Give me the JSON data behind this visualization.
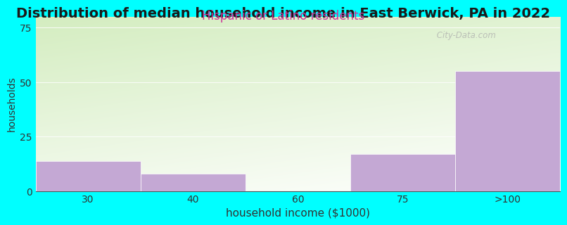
{
  "title": "Distribution of median household income in East Berwick, PA in 2022",
  "subtitle": "Hispanic or Latino residents",
  "xlabel": "household income ($1000)",
  "ylabel": "households",
  "categories": [
    "30",
    "40",
    "60",
    "75",
    ">100"
  ],
  "values": [
    14,
    8,
    0,
    17,
    55
  ],
  "bar_color": "#C4A8D4",
  "bar_edge_color": "#C4A8D4",
  "background_color": "#00FFFF",
  "plot_bg_top_left": "#d4edc0",
  "plot_bg_bottom_right": "#ffffff",
  "ylim": [
    0,
    80
  ],
  "yticks": [
    0,
    25,
    50,
    75
  ],
  "title_fontsize": 14,
  "subtitle_fontsize": 12,
  "title_color": "#1a1a1a",
  "subtitle_color": "#cc3399",
  "ylabel_color": "#333333",
  "xlabel_color": "#333333",
  "watermark": " City-Data.com",
  "watermark_color": "#aaaaaa"
}
